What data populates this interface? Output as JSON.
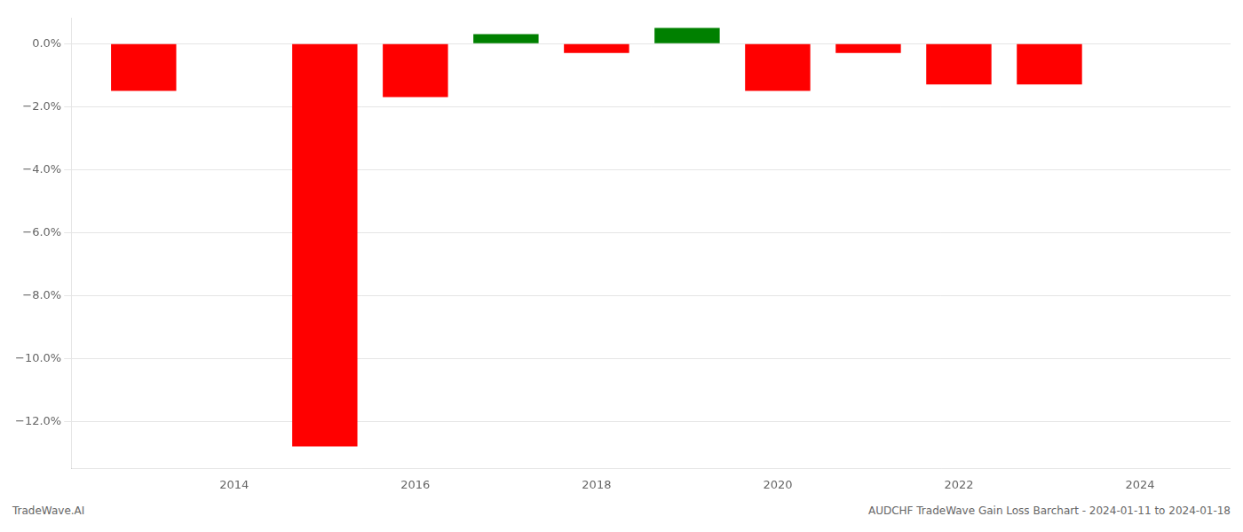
{
  "chart_data": {
    "type": "bar",
    "x": [
      2013,
      2015,
      2016,
      2017,
      2018,
      2019,
      2020,
      2021,
      2022,
      2023
    ],
    "values": [
      -0.015,
      -0.128,
      -0.017,
      0.003,
      -0.003,
      0.005,
      -0.015,
      -0.003,
      -0.013,
      -0.013
    ],
    "colors": [
      "#ff0000",
      "#ff0000",
      "#ff0000",
      "#008000",
      "#ff0000",
      "#008000",
      "#ff0000",
      "#ff0000",
      "#ff0000",
      "#ff0000"
    ],
    "xlim": [
      2012.2,
      2025.0
    ],
    "ylim": [
      -0.135,
      0.008
    ],
    "xticks": [
      2014,
      2016,
      2018,
      2020,
      2022,
      2024
    ],
    "yticks": [
      {
        "value": 0.0,
        "label": "0.0%"
      },
      {
        "value": -0.02,
        "label": "−2.0%"
      },
      {
        "value": -0.04,
        "label": "−4.0%"
      },
      {
        "value": -0.06,
        "label": "−6.0%"
      },
      {
        "value": -0.08,
        "label": "−8.0%"
      },
      {
        "value": -0.1,
        "label": "−10.0%"
      },
      {
        "value": -0.12,
        "label": "−12.0%"
      }
    ],
    "grid": "y",
    "annotations": [
      "TradeWave.AI",
      "AUDCHF TradeWave Gain Loss Barchart - 2024-01-11 to 2024-01-18"
    ]
  }
}
